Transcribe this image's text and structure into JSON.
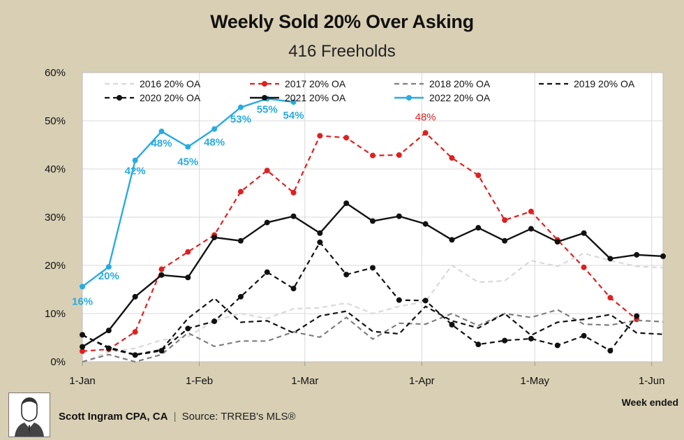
{
  "title": "Weekly Sold 20% Over Asking",
  "subtitle": "416 Freeholds",
  "week_label": "Week ended",
  "footer": {
    "author": "Scott Ingram CPA, CA",
    "separator": "|",
    "source": "Source: TRREB's MLS®"
  },
  "chart_data": {
    "type": "line",
    "title": "Weekly Sold 20% Over Asking",
    "subtitle": "416 Freeholds",
    "xlabel": "Week ended",
    "ylabel": "",
    "ylim": [
      0,
      60
    ],
    "y_ticks": [
      "0%",
      "10%",
      "20%",
      "30%",
      "40%",
      "50%",
      "60%"
    ],
    "x_tick_labels": [
      "1-Jan",
      "1-Feb",
      "1-Mar",
      "1-Apr",
      "1-May",
      "1-Jun"
    ],
    "x": [
      1,
      2,
      3,
      4,
      5,
      6,
      7,
      8,
      9,
      10,
      11,
      12,
      13,
      14,
      15,
      16,
      17,
      18,
      19,
      20,
      21,
      22,
      23
    ],
    "grid": true,
    "legend_position": "top",
    "series": [
      {
        "name": "2016 20% OA",
        "color": "#d9d9d9",
        "style": "dashed",
        "markers": false,
        "values": [
          0,
          2,
          2.8,
          4.5,
          5.2,
          8.5,
          10,
          9,
          11,
          11.2,
          12.2,
          10,
          11.5,
          12.5,
          20,
          16.5,
          16.8,
          21,
          19.8,
          22.5,
          21,
          19.8,
          19.5
        ]
      },
      {
        "name": "2017 20% OA",
        "color": "#e02020",
        "style": "dashed",
        "markers": true,
        "values": [
          2.2,
          2.6,
          6.2,
          19.2,
          22.8,
          26.3,
          35.3,
          39.7,
          35.1,
          46.9,
          46.5,
          42.8,
          42.9,
          47.5,
          42.3,
          38.7,
          29.4,
          31.2,
          25.3,
          19.6,
          13.3,
          8.8,
          null
        ],
        "labels": [
          {
            "index": 13,
            "text": "48%"
          }
        ]
      },
      {
        "name": "2018 20% OA",
        "color": "#7f7f7f",
        "style": "dashed",
        "markers": false,
        "values": [
          0,
          1.5,
          0,
          1.5,
          6,
          3.2,
          4.3,
          4.3,
          6.2,
          5.1,
          9.2,
          4.7,
          8,
          7.8,
          10,
          7.5,
          10,
          9.2,
          10.8,
          7.8,
          7.6,
          8.6,
          8.3
        ]
      },
      {
        "name": "2019 20% OA",
        "color": "#111111",
        "style": "dashed",
        "markers": false,
        "values": [
          5.5,
          3,
          1.5,
          2.5,
          9,
          13.2,
          8.2,
          8.5,
          6,
          9.5,
          10.5,
          6.3,
          5.8,
          11.5,
          8.5,
          7,
          10,
          5.5,
          8.2,
          8.8,
          9.8,
          6,
          5.7
        ]
      },
      {
        "name": "2020 20% OA",
        "color": "#111111",
        "style": "dashed",
        "markers": true,
        "values": [
          5.6,
          2.8,
          1.4,
          2.3,
          6.9,
          8.4,
          13.5,
          18.6,
          15.2,
          24.8,
          18.1,
          19.5,
          12.8,
          12.7,
          7.7,
          3.6,
          4.4,
          4.8,
          3.4,
          5.4,
          2.3,
          9.5,
          null
        ]
      },
      {
        "name": "2021 20% OA",
        "color": "#111111",
        "style": "solid",
        "markers": true,
        "values": [
          3.1,
          6.5,
          13.5,
          18,
          17.5,
          25.8,
          25.1,
          28.9,
          30.2,
          26.7,
          32.9,
          29.2,
          30.2,
          28.6,
          25.3,
          27.8,
          25.1,
          27.6,
          24.9,
          26.7,
          21.4,
          22.2,
          21.9
        ]
      },
      {
        "name": "2022 20% OA",
        "color": "#29abe2",
        "style": "solid",
        "markers": true,
        "values": [
          15.6,
          19.7,
          41.8,
          47.8,
          44.6,
          48.3,
          52.8,
          54.6,
          53.9,
          null,
          null,
          null,
          null,
          null,
          null,
          null,
          null,
          null,
          null,
          null,
          null,
          null,
          null
        ],
        "labels": [
          {
            "index": 0,
            "text": "16%"
          },
          {
            "index": 1,
            "text": "20%"
          },
          {
            "index": 2,
            "text": "42%"
          },
          {
            "index": 3,
            "text": "48%"
          },
          {
            "index": 4,
            "text": "45%"
          },
          {
            "index": 5,
            "text": "48%"
          },
          {
            "index": 6,
            "text": "53%"
          },
          {
            "index": 7,
            "text": "55%"
          },
          {
            "index": 8,
            "text": "54%"
          }
        ]
      }
    ]
  }
}
